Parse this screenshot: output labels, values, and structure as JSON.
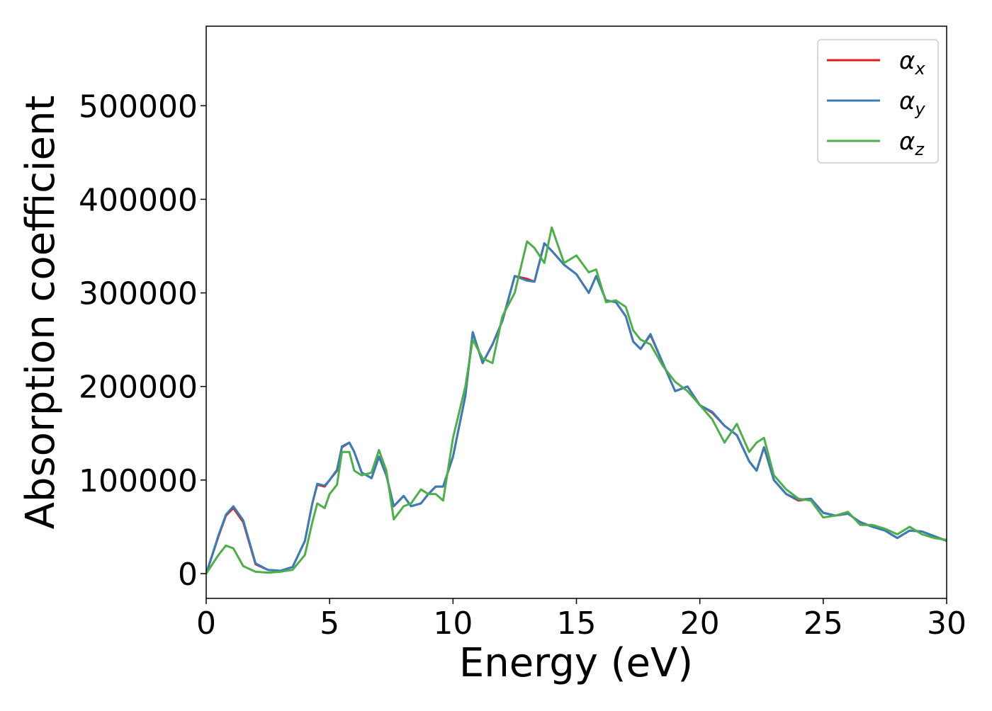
{
  "chart_data": {
    "type": "line",
    "xlabel": "Energy (eV)",
    "ylabel": "Absorption coefficient",
    "x": [
      0,
      0.5,
      0.8,
      1.1,
      1.5,
      2,
      2.5,
      3,
      3.5,
      4,
      4.3,
      4.5,
      4.8,
      5,
      5.3,
      5.5,
      5.8,
      6,
      6.3,
      6.7,
      7,
      7.3,
      7.6,
      8,
      8.3,
      8.7,
      9,
      9.3,
      9.6,
      10,
      10.5,
      10.8,
      11.2,
      11.6,
      12,
      12.5,
      13,
      13.3,
      13.7,
      14,
      14.5,
      15,
      15.5,
      15.8,
      16.2,
      16.6,
      17,
      17.3,
      17.6,
      18,
      18.5,
      19,
      19.5,
      20,
      20.5,
      21,
      21.5,
      22,
      22.3,
      22.6,
      23,
      23.5,
      24,
      24.5,
      25,
      25.5,
      26,
      26.5,
      27,
      27.5,
      28,
      28.5,
      29,
      29.5,
      30
    ],
    "series": [
      {
        "name": "αx",
        "color": "#e41a1c",
        "values": [
          0,
          40000,
          62000,
          70000,
          55000,
          10000,
          4000,
          3000,
          7000,
          35000,
          75000,
          95000,
          93000,
          100000,
          110000,
          135000,
          140000,
          130000,
          108000,
          102000,
          125000,
          105000,
          72000,
          83000,
          72000,
          75000,
          85000,
          93000,
          93000,
          125000,
          190000,
          258000,
          225000,
          245000,
          270000,
          318000,
          315000,
          312000,
          353000,
          345000,
          330000,
          320000,
          300000,
          318000,
          292000,
          290000,
          275000,
          248000,
          240000,
          255000,
          225000,
          195000,
          200000,
          180000,
          172000,
          158000,
          148000,
          120000,
          110000,
          135000,
          100000,
          85000,
          78000,
          80000,
          65000,
          62000,
          64000,
          55000,
          50000,
          46000,
          38000,
          46000,
          45000,
          40000,
          35000
        ]
      },
      {
        "name": "αy",
        "color": "#377eb8",
        "values": [
          0,
          41000,
          63000,
          72000,
          57000,
          11000,
          4000,
          3000,
          7000,
          35000,
          75000,
          96000,
          94000,
          100000,
          111000,
          136000,
          140000,
          130000,
          108000,
          102000,
          125000,
          105000,
          72000,
          83000,
          72000,
          75000,
          85000,
          93000,
          93000,
          125000,
          190000,
          258000,
          225000,
          245000,
          270000,
          318000,
          313000,
          312000,
          353000,
          345000,
          330000,
          320000,
          300000,
          318000,
          292000,
          290000,
          275000,
          248000,
          240000,
          256000,
          225000,
          195000,
          200000,
          180000,
          173000,
          158000,
          148000,
          120000,
          110000,
          135000,
          100000,
          85000,
          79000,
          80000,
          65000,
          62000,
          64000,
          55000,
          50000,
          46000,
          38000,
          46000,
          45000,
          40000,
          35000
        ]
      },
      {
        "name": "αz",
        "color": "#4daf4a",
        "values": [
          0,
          20000,
          30000,
          27000,
          8000,
          2000,
          1000,
          2000,
          4000,
          20000,
          55000,
          75000,
          70000,
          85000,
          95000,
          130000,
          130000,
          110000,
          105000,
          108000,
          132000,
          110000,
          58000,
          72000,
          75000,
          90000,
          85000,
          85000,
          78000,
          145000,
          200000,
          250000,
          230000,
          225000,
          275000,
          300000,
          355000,
          348000,
          332000,
          370000,
          332000,
          340000,
          322000,
          325000,
          290000,
          292000,
          285000,
          260000,
          250000,
          245000,
          222000,
          205000,
          195000,
          180000,
          165000,
          140000,
          160000,
          130000,
          140000,
          145000,
          105000,
          90000,
          80000,
          78000,
          60000,
          62000,
          66000,
          52000,
          52000,
          48000,
          42000,
          50000,
          42000,
          38000,
          36000
        ]
      }
    ],
    "xlim": [
      0,
      30
    ],
    "ylim": [
      -26500,
      585000
    ],
    "xticks": [
      0,
      5,
      10,
      15,
      20,
      25,
      30
    ],
    "yticks": [
      0,
      100000,
      200000,
      300000,
      400000,
      500000
    ],
    "legend": "upper right"
  }
}
